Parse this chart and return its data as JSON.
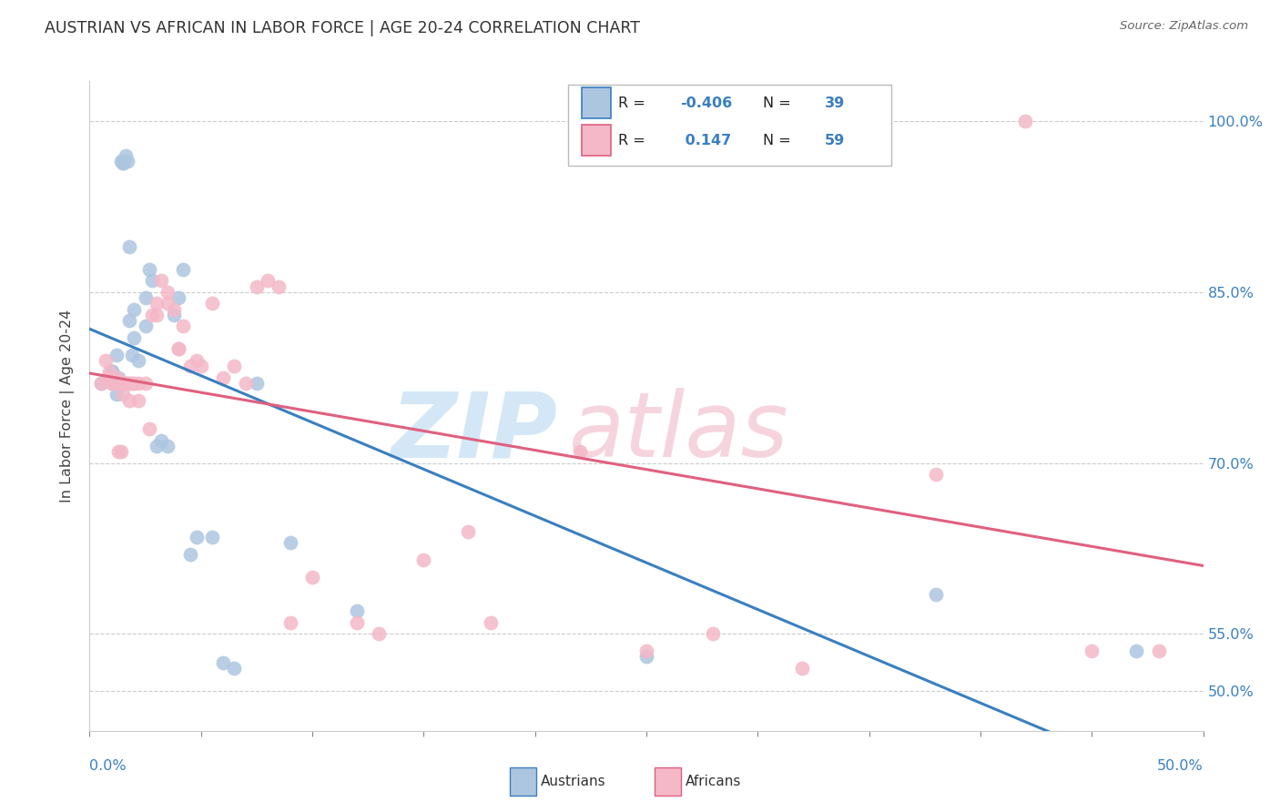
{
  "title": "AUSTRIAN VS AFRICAN IN LABOR FORCE | AGE 20-24 CORRELATION CHART",
  "source": "Source: ZipAtlas.com",
  "ylabel": "In Labor Force | Age 20-24",
  "ytick_labels": [
    "50.0%",
    "55.0%",
    "70.0%",
    "85.0%",
    "100.0%"
  ],
  "ytick_values": [
    50.0,
    55.0,
    70.0,
    85.0,
    100.0
  ],
  "xlim": [
    0.0,
    50.0
  ],
  "ylim": [
    46.5,
    103.5
  ],
  "legend_r_austrians": "-0.406",
  "legend_n_austrians": "39",
  "legend_r_africans": " 0.147",
  "legend_n_africans": "59",
  "austrian_color": "#adc6e0",
  "african_color": "#f4b8c8",
  "trend_blue": "#3a7fc1",
  "trend_pink": "#e06080",
  "watermark_zip": "ZIP",
  "watermark_atlas": "atlas",
  "austrians_x": [
    0.5,
    1.0,
    1.0,
    1.2,
    1.2,
    1.3,
    1.4,
    1.5,
    1.5,
    1.5,
    1.6,
    1.7,
    1.8,
    1.8,
    1.9,
    2.0,
    2.0,
    2.2,
    2.5,
    2.5,
    2.7,
    2.8,
    3.0,
    3.2,
    3.5,
    3.8,
    4.0,
    4.2,
    4.5,
    4.8,
    5.5,
    6.0,
    6.5,
    7.5,
    9.0,
    12.0,
    25.0,
    38.0,
    47.0
  ],
  "austrians_y": [
    77.0,
    78.0,
    78.0,
    79.5,
    76.0,
    77.5,
    96.5,
    96.5,
    96.3,
    96.3,
    97.0,
    96.5,
    89.0,
    82.5,
    79.5,
    81.0,
    83.5,
    79.0,
    84.5,
    82.0,
    87.0,
    86.0,
    71.5,
    72.0,
    71.5,
    83.0,
    84.5,
    87.0,
    62.0,
    63.5,
    63.5,
    52.5,
    52.0,
    77.0,
    63.0,
    57.0,
    53.0,
    58.5,
    53.5
  ],
  "africans_x": [
    0.5,
    0.7,
    0.8,
    0.9,
    1.0,
    1.0,
    1.2,
    1.2,
    1.3,
    1.4,
    1.5,
    1.5,
    1.6,
    1.6,
    1.7,
    1.8,
    1.8,
    1.9,
    2.0,
    2.2,
    2.2,
    2.5,
    2.7,
    2.8,
    3.0,
    3.0,
    3.2,
    3.5,
    3.5,
    3.8,
    4.0,
    4.0,
    4.2,
    4.5,
    4.8,
    5.0,
    5.5,
    6.0,
    6.5,
    7.0,
    7.5,
    8.0,
    8.5,
    9.0,
    10.0,
    12.0,
    13.0,
    15.0,
    17.0,
    18.0,
    22.0,
    25.0,
    28.0,
    32.0,
    35.0,
    38.0,
    42.0,
    45.0,
    48.0
  ],
  "africans_y": [
    77.0,
    79.0,
    77.5,
    78.0,
    77.0,
    77.0,
    77.5,
    77.0,
    71.0,
    71.0,
    76.0,
    77.0,
    77.0,
    77.0,
    77.0,
    77.0,
    75.5,
    77.0,
    77.0,
    77.0,
    75.5,
    77.0,
    73.0,
    83.0,
    83.0,
    84.0,
    86.0,
    84.0,
    85.0,
    83.5,
    80.0,
    80.0,
    82.0,
    78.5,
    79.0,
    78.5,
    84.0,
    77.5,
    78.5,
    77.0,
    85.5,
    86.0,
    85.5,
    56.0,
    60.0,
    56.0,
    55.0,
    61.5,
    64.0,
    56.0,
    71.0,
    53.5,
    55.0,
    52.0,
    100.0,
    69.0,
    100.0,
    53.5,
    53.5
  ]
}
